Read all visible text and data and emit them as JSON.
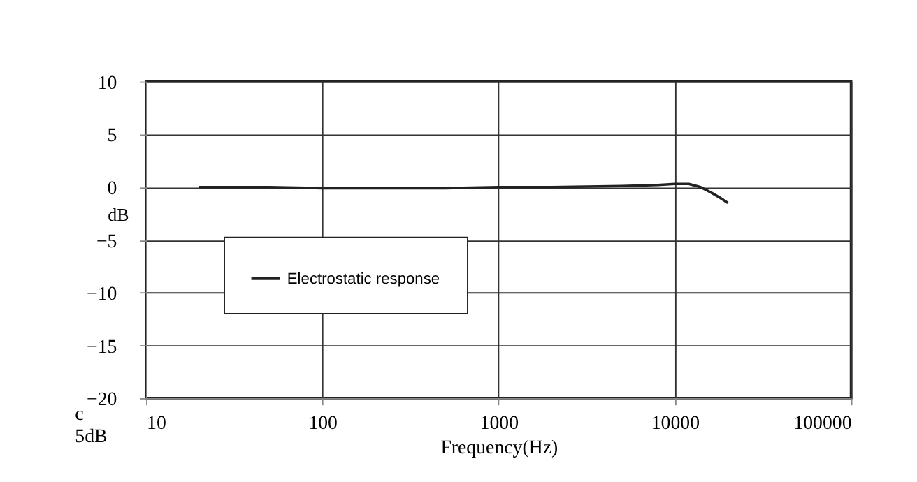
{
  "chart_data": {
    "type": "line",
    "xlabel": "Frequency(Hz)",
    "ylabel": "dB",
    "log": "x",
    "x": [
      20,
      30,
      50,
      100,
      200,
      500,
      1000,
      2000,
      5000,
      8000,
      10000,
      12000,
      14000,
      16000,
      18000,
      20000
    ],
    "series": [
      {
        "name": "Electrostatic response",
        "color": "#222222",
        "values": [
          0,
          0,
          0,
          -0.1,
          -0.1,
          -0.1,
          0,
          0,
          0.1,
          0.2,
          0.3,
          0.3,
          0,
          -0.5,
          -1,
          -1.5
        ]
      }
    ],
    "xlim": [
      10,
      100000
    ],
    "xticks": [
      10,
      100,
      1000,
      10000,
      100000
    ],
    "ylim": [
      -20,
      10
    ],
    "yticks": [
      -20,
      -15,
      -10,
      -5,
      0,
      5,
      10
    ],
    "grid": true,
    "legend": "left",
    "marker": "none",
    "line_style": "solid",
    "annotations": [
      "c",
      "5dB"
    ]
  }
}
